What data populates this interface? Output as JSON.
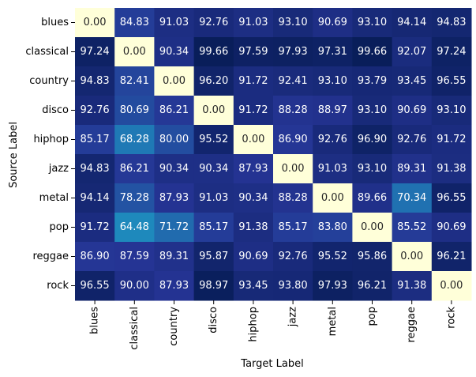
{
  "chart_data": {
    "type": "heatmap",
    "xlabel": "Target Label",
    "ylabel": "Source Label",
    "x_categories": [
      "blues",
      "classical",
      "country",
      "disco",
      "hiphop",
      "jazz",
      "metal",
      "pop",
      "reggae",
      "rock"
    ],
    "y_categories": [
      "blues",
      "classical",
      "country",
      "disco",
      "hiphop",
      "jazz",
      "metal",
      "pop",
      "reggae",
      "rock"
    ],
    "values": [
      [
        "0.00",
        "84.83",
        "91.03",
        "92.76",
        "91.03",
        "93.10",
        "90.69",
        "93.10",
        "94.14",
        "94.83"
      ],
      [
        "97.24",
        "0.00",
        "90.34",
        "99.66",
        "97.59",
        "97.93",
        "97.31",
        "99.66",
        "92.07",
        "97.24"
      ],
      [
        "94.83",
        "82.41",
        "0.00",
        "96.20",
        "91.72",
        "92.41",
        "93.10",
        "93.79",
        "93.45",
        "96.55"
      ],
      [
        "92.76",
        "80.69",
        "86.21",
        "0.00",
        "91.72",
        "88.28",
        "88.97",
        "93.10",
        "90.69",
        "93.10"
      ],
      [
        "85.17",
        "68.28",
        "80.00",
        "95.52",
        "0.00",
        "86.90",
        "92.76",
        "96.90",
        "92.76",
        "91.72"
      ],
      [
        "94.83",
        "86.21",
        "90.34",
        "90.34",
        "87.93",
        "0.00",
        "91.03",
        "93.10",
        "89.31",
        "91.38"
      ],
      [
        "94.14",
        "78.28",
        "87.93",
        "91.03",
        "90.34",
        "88.28",
        "0.00",
        "89.66",
        "70.34",
        "96.55"
      ],
      [
        "91.72",
        "64.48",
        "71.72",
        "85.17",
        "91.38",
        "85.17",
        "83.80",
        "0.00",
        "85.52",
        "90.69"
      ],
      [
        "86.90",
        "87.59",
        "89.31",
        "95.87",
        "90.69",
        "92.76",
        "95.52",
        "95.86",
        "0.00",
        "96.21"
      ],
      [
        "96.55",
        "90.00",
        "87.93",
        "98.97",
        "93.45",
        "93.80",
        "97.93",
        "96.21",
        "91.38",
        "0.00"
      ]
    ],
    "colormap": "YlGnBu",
    "value_range": [
      0,
      100
    ],
    "colorbar": false,
    "grid": false,
    "legend": "none"
  }
}
